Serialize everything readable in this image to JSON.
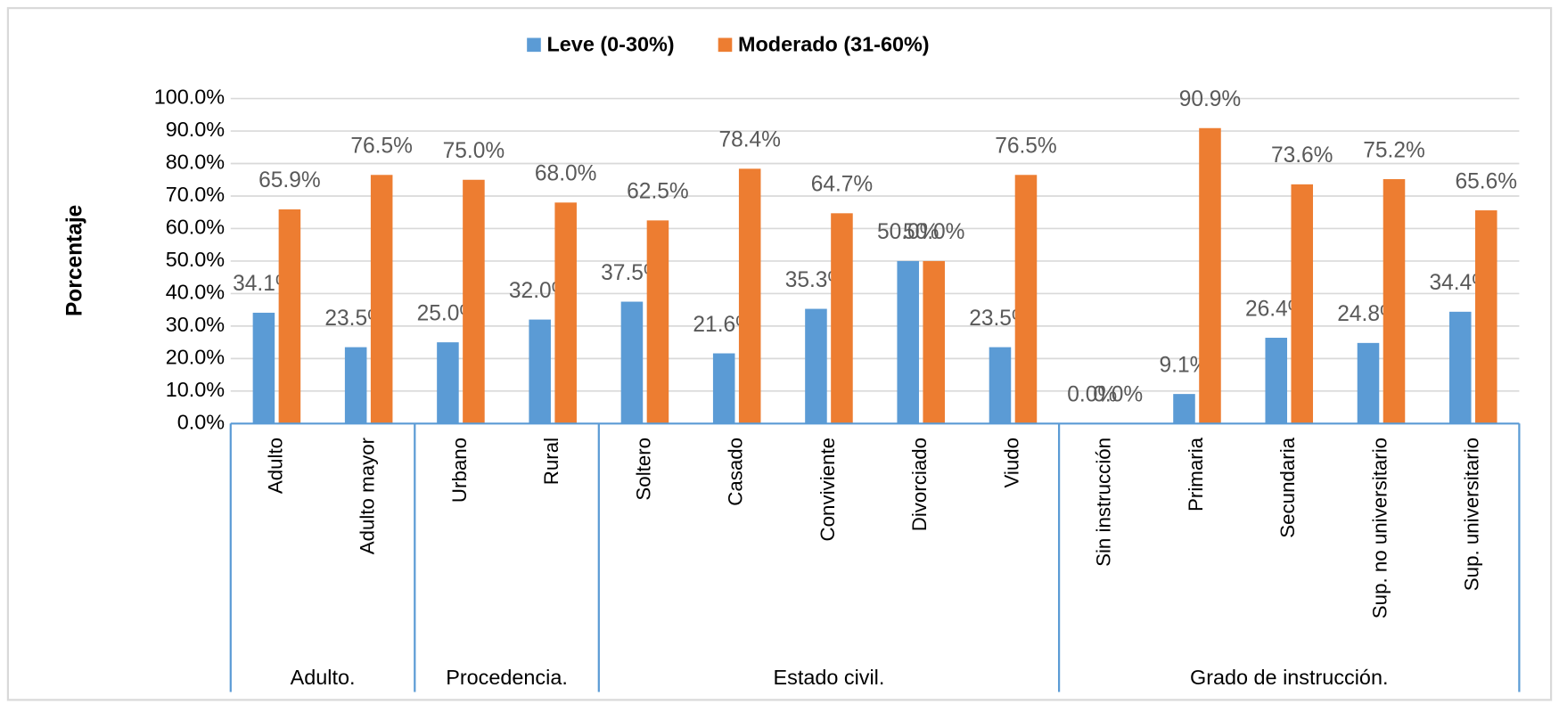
{
  "chart_data": {
    "type": "bar",
    "y_axis_label": "Porcentaje",
    "category_groups": [
      {
        "name": "Adulto.",
        "categories": [
          "Adulto",
          "Adulto mayor"
        ]
      },
      {
        "name": "Procedencia.",
        "categories": [
          "Urbano",
          "Rural"
        ]
      },
      {
        "name": "Estado civil.",
        "categories": [
          "Soltero",
          "Casado",
          "Conviviente",
          "Divorciado",
          "Viudo"
        ]
      },
      {
        "name": "Grado de instrucción.",
        "categories": [
          "Sin instrucción",
          "Primaria",
          "Secundaria",
          "Sup. no universitario",
          "Sup. universitario"
        ]
      }
    ],
    "series": [
      {
        "name": "Leve (0-30%)",
        "color": "#5b9bd5",
        "values": [
          34.1,
          23.5,
          25.0,
          32.0,
          37.5,
          21.6,
          35.3,
          50.0,
          23.5,
          0.0,
          9.1,
          26.4,
          24.8,
          34.4
        ],
        "value_labels": [
          "34.1%",
          "23.5%",
          "25.0%",
          "32.0%",
          "37.5%",
          "21.6%",
          "35.3%",
          "50.0%",
          "23.5%",
          "0.0%",
          "9.1%",
          "26.4%",
          "24.8%",
          "34.4%"
        ]
      },
      {
        "name": "Moderado (31-60%)",
        "color": "#ed7d31",
        "values": [
          65.9,
          76.5,
          75.0,
          68.0,
          62.5,
          78.4,
          64.7,
          50.0,
          76.5,
          0.0,
          90.9,
          73.6,
          75.2,
          65.6
        ],
        "value_labels": [
          "65.9%",
          "76.5%",
          "75.0%",
          "68.0%",
          "62.5%",
          "78.4%",
          "64.7%",
          "50.0%",
          "76.5%",
          "0.0%",
          "90.9%",
          "73.6%",
          "75.2%",
          "65.6%"
        ]
      }
    ],
    "ylim": [
      0,
      100
    ],
    "yticks": [
      {
        "value": 0,
        "label": "0.0%"
      },
      {
        "value": 10,
        "label": "10.0%"
      },
      {
        "value": 20,
        "label": "20.0%"
      },
      {
        "value": 30,
        "label": "30.0%"
      },
      {
        "value": 40,
        "label": "40.0%"
      },
      {
        "value": 50,
        "label": "50.0%"
      },
      {
        "value": 60,
        "label": "60.0%"
      },
      {
        "value": 70,
        "label": "70.0%"
      },
      {
        "value": 80,
        "label": "80.0%"
      },
      {
        "value": 90,
        "label": "90.0%"
      },
      {
        "value": 100,
        "label": "100.0%"
      }
    ],
    "grid": true,
    "legend": "top"
  }
}
